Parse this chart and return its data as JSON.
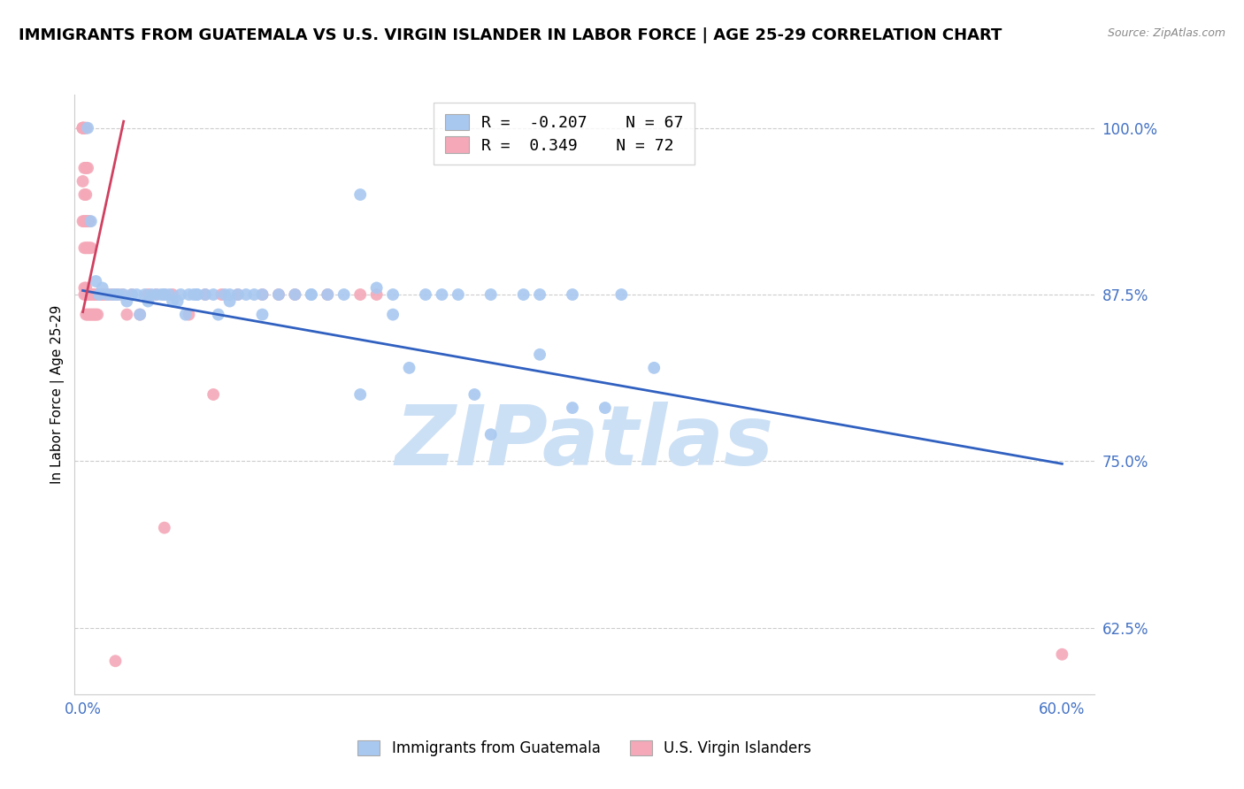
{
  "title": "IMMIGRANTS FROM GUATEMALA VS U.S. VIRGIN ISLANDER IN LABOR FORCE | AGE 25-29 CORRELATION CHART",
  "source": "Source: ZipAtlas.com",
  "ylabel": "In Labor Force | Age 25-29",
  "xlim": [
    -0.005,
    0.62
  ],
  "ylim": [
    0.575,
    1.025
  ],
  "yticks": [
    0.625,
    0.75,
    0.875,
    1.0
  ],
  "ytick_labels": [
    "62.5%",
    "75.0%",
    "87.5%",
    "100.0%"
  ],
  "xtick_show": [
    0.0,
    0.6
  ],
  "xtick_labels": [
    "0.0%",
    "60.0%"
  ],
  "blue_R": -0.207,
  "blue_N": 67,
  "pink_R": 0.349,
  "pink_N": 72,
  "blue_label": "Immigrants from Guatemala",
  "pink_label": "U.S. Virgin Islanders",
  "blue_color": "#a8c8f0",
  "pink_color": "#f4a8b8",
  "blue_line_color": "#3060c0",
  "pink_line_color": "#d04060",
  "watermark": "ZIPatlas",
  "watermark_color": "#cce0f5",
  "axis_color": "#4472c4",
  "title_fontsize": 13,
  "blue_line_x": [
    0.0,
    0.6
  ],
  "blue_line_y": [
    0.878,
    0.748
  ],
  "pink_line_x": [
    0.0,
    0.025
  ],
  "pink_line_y": [
    0.862,
    1.005
  ],
  "blue_dots_x": [
    0.003,
    0.005,
    0.008,
    0.01,
    0.012,
    0.015,
    0.018,
    0.02,
    0.022,
    0.025,
    0.027,
    0.03,
    0.033,
    0.035,
    0.038,
    0.04,
    0.042,
    0.045,
    0.048,
    0.05,
    0.053,
    0.055,
    0.058,
    0.06,
    0.063,
    0.065,
    0.068,
    0.07,
    0.075,
    0.08,
    0.083,
    0.087,
    0.09,
    0.095,
    0.1,
    0.105,
    0.11,
    0.12,
    0.13,
    0.14,
    0.15,
    0.16,
    0.17,
    0.18,
    0.19,
    0.21,
    0.23,
    0.25,
    0.27,
    0.3,
    0.33,
    0.22,
    0.28,
    0.19,
    0.25,
    0.3,
    0.35,
    0.32,
    0.28,
    0.24,
    0.2,
    0.17,
    0.14,
    0.11,
    0.09,
    0.07,
    0.05
  ],
  "blue_dots_y": [
    1.0,
    0.93,
    0.885,
    0.875,
    0.88,
    0.875,
    0.875,
    0.875,
    0.875,
    0.875,
    0.87,
    0.875,
    0.875,
    0.86,
    0.875,
    0.87,
    0.875,
    0.875,
    0.875,
    0.875,
    0.875,
    0.87,
    0.87,
    0.875,
    0.86,
    0.875,
    0.875,
    0.875,
    0.875,
    0.875,
    0.86,
    0.875,
    0.87,
    0.875,
    0.875,
    0.875,
    0.875,
    0.875,
    0.875,
    0.875,
    0.875,
    0.875,
    0.95,
    0.88,
    0.875,
    0.875,
    0.875,
    0.875,
    0.875,
    0.875,
    0.875,
    0.875,
    0.83,
    0.86,
    0.77,
    0.79,
    0.82,
    0.79,
    0.875,
    0.8,
    0.82,
    0.8,
    0.875,
    0.86,
    0.875,
    0.875,
    0.875
  ],
  "pink_dots_x": [
    0.0,
    0.0,
    0.0,
    0.0,
    0.0,
    0.0,
    0.001,
    0.001,
    0.001,
    0.001,
    0.001,
    0.001,
    0.001,
    0.001,
    0.002,
    0.002,
    0.002,
    0.002,
    0.002,
    0.002,
    0.002,
    0.002,
    0.003,
    0.003,
    0.003,
    0.003,
    0.003,
    0.004,
    0.004,
    0.004,
    0.004,
    0.005,
    0.005,
    0.005,
    0.006,
    0.006,
    0.007,
    0.007,
    0.008,
    0.008,
    0.009,
    0.009,
    0.01,
    0.011,
    0.012,
    0.013,
    0.015,
    0.017,
    0.019,
    0.021,
    0.024,
    0.027,
    0.03,
    0.035,
    0.04,
    0.045,
    0.05,
    0.055,
    0.065,
    0.075,
    0.085,
    0.095,
    0.11,
    0.13,
    0.15,
    0.17,
    0.6,
    0.18,
    0.12,
    0.08,
    0.05,
    0.02
  ],
  "pink_dots_y": [
    1.0,
    1.0,
    1.0,
    1.0,
    0.96,
    0.93,
    1.0,
    1.0,
    0.97,
    0.95,
    0.93,
    0.91,
    0.88,
    0.875,
    1.0,
    0.97,
    0.95,
    0.93,
    0.91,
    0.88,
    0.875,
    0.86,
    0.97,
    0.93,
    0.91,
    0.875,
    0.86,
    0.93,
    0.91,
    0.875,
    0.86,
    0.91,
    0.875,
    0.86,
    0.875,
    0.86,
    0.875,
    0.86,
    0.875,
    0.86,
    0.875,
    0.86,
    0.875,
    0.875,
    0.875,
    0.875,
    0.875,
    0.875,
    0.875,
    0.875,
    0.875,
    0.86,
    0.875,
    0.86,
    0.875,
    0.875,
    0.875,
    0.875,
    0.86,
    0.875,
    0.875,
    0.875,
    0.875,
    0.875,
    0.875,
    0.875,
    0.605,
    0.875,
    0.875,
    0.8,
    0.7,
    0.6
  ]
}
